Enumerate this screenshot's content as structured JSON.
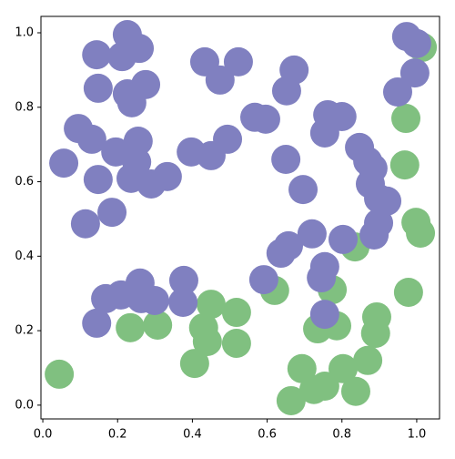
{
  "chart_data": {
    "type": "scatter",
    "xlim": [
      -0.005,
      1.061
    ],
    "ylim": [
      -0.037,
      1.044
    ],
    "xticks": [
      {
        "value": 0,
        "label": "0.0"
      },
      {
        "value": 0.2,
        "label": "0.2"
      },
      {
        "value": 0.4,
        "label": "0.4"
      },
      {
        "value": 0.6,
        "label": "0.6"
      },
      {
        "value": 0.8,
        "label": "0.8"
      },
      {
        "value": 1,
        "label": "1.0"
      }
    ],
    "yticks": [
      {
        "value": 0,
        "label": "0.0"
      },
      {
        "value": 0.2,
        "label": "0.2"
      },
      {
        "value": 0.4,
        "label": "0.4"
      },
      {
        "value": 0.6,
        "label": "0.6"
      },
      {
        "value": 0.8,
        "label": "0.8"
      },
      {
        "value": 1,
        "label": "1.0"
      }
    ],
    "series": [
      {
        "color": "#80c080",
        "x": [
          0.044,
          0.234,
          0.307,
          0.45,
          0.43,
          0.44,
          0.406,
          0.518,
          0.518,
          0.62,
          0.664,
          0.693,
          0.725,
          0.754,
          0.735,
          0.774,
          0.786,
          0.803,
          0.837,
          0.869,
          0.89,
          0.893,
          0.835,
          0.971,
          0.968,
          0.978,
          0.998,
          1.01,
          1.015
        ],
        "y": [
          0.083,
          0.208,
          0.215,
          0.271,
          0.208,
          0.171,
          0.112,
          0.249,
          0.166,
          0.308,
          0.012,
          0.098,
          0.042,
          0.051,
          0.205,
          0.31,
          0.213,
          0.098,
          0.037,
          0.12,
          0.193,
          0.237,
          0.425,
          0.77,
          0.645,
          0.303,
          0.491,
          0.462,
          0.961
        ]
      },
      {
        "color": "#8080c0",
        "x": [
          0.226,
          0.258,
          0.212,
          0.144,
          0.148,
          0.226,
          0.238,
          0.275,
          0.095,
          0.131,
          0.195,
          0.255,
          0.251,
          0.148,
          0.056,
          0.236,
          0.29,
          0.333,
          0.114,
          0.185,
          0.397,
          0.45,
          0.494,
          0.433,
          0.523,
          0.474,
          0.672,
          0.652,
          0.567,
          0.596,
          0.65,
          0.696,
          0.762,
          0.754,
          0.8,
          0.847,
          0.869,
          0.883,
          0.876,
          0.898,
          0.92,
          0.898,
          0.886,
          0.949,
          0.973,
          1.0,
          0.995,
          0.72,
          0.803,
          0.657,
          0.637,
          0.591,
          0.754,
          0.745,
          0.754,
          0.377,
          0.375,
          0.299,
          0.263,
          0.209,
          0.168,
          0.144,
          0.26
        ],
        "y": [
          0.995,
          0.958,
          0.936,
          0.941,
          0.851,
          0.836,
          0.812,
          0.861,
          0.743,
          0.714,
          0.68,
          0.709,
          0.653,
          0.606,
          0.65,
          0.609,
          0.594,
          0.614,
          0.487,
          0.518,
          0.68,
          0.67,
          0.714,
          0.922,
          0.922,
          0.873,
          0.9,
          0.844,
          0.773,
          0.768,
          0.66,
          0.579,
          0.78,
          0.731,
          0.775,
          0.692,
          0.655,
          0.636,
          0.594,
          0.555,
          0.548,
          0.489,
          0.457,
          0.841,
          0.99,
          0.971,
          0.892,
          0.46,
          0.445,
          0.428,
          0.408,
          0.337,
          0.372,
          0.342,
          0.244,
          0.335,
          0.276,
          0.281,
          0.286,
          0.296,
          0.286,
          0.22,
          0.328
        ]
      }
    ]
  }
}
